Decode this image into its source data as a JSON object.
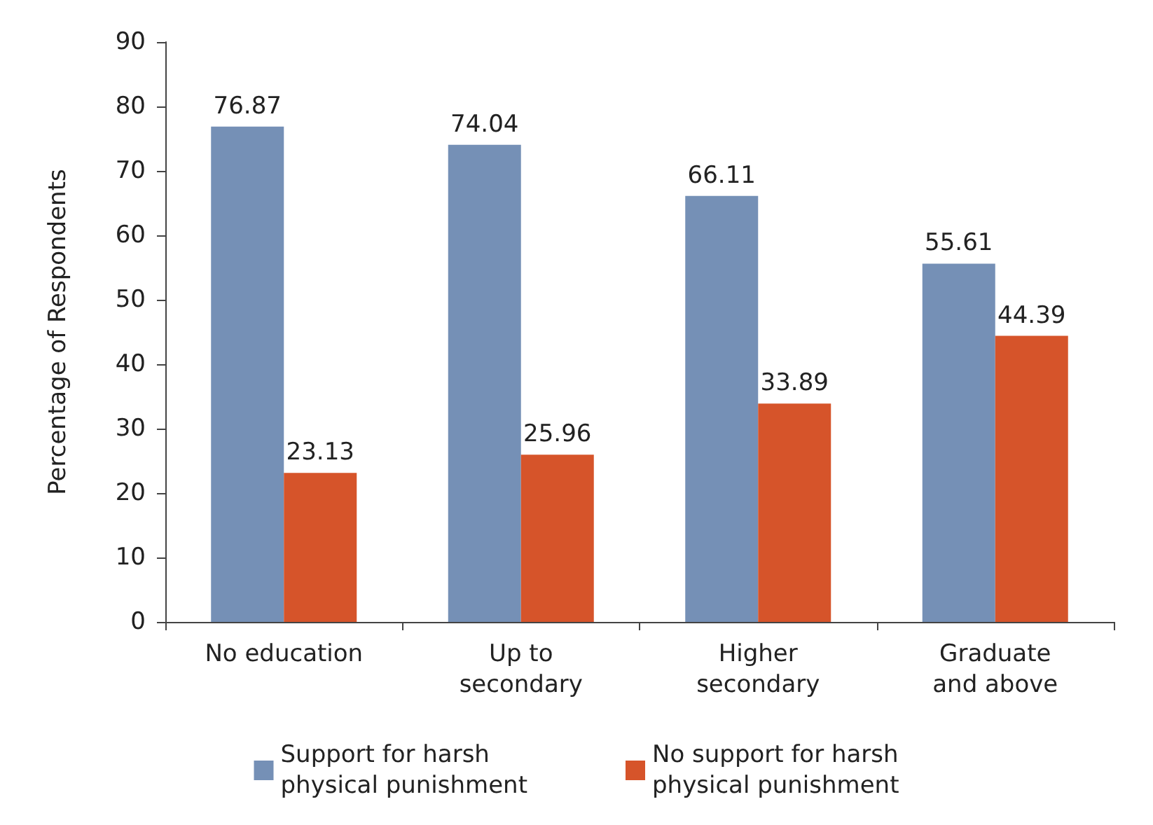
{
  "chart_data": {
    "type": "bar",
    "ylabel": "Percentage of Respondents",
    "categories": [
      "No education",
      "Up to\nsecondary",
      "Higher\nsecondary",
      "Graduate\nand above"
    ],
    "series": [
      {
        "name": "Support for harsh\nphysical punishment",
        "color": "#7590b6",
        "values": [
          76.87,
          74.04,
          66.11,
          55.61
        ]
      },
      {
        "name": "No support for harsh\nphysical punishment",
        "color": "#d6542a",
        "values": [
          23.13,
          25.96,
          33.89,
          44.39
        ]
      }
    ],
    "ylim": [
      0,
      90
    ],
    "yticks": [
      0,
      10,
      20,
      30,
      40,
      50,
      60,
      70,
      80,
      90
    ],
    "grid": false,
    "legend": "bottom",
    "data_labels": true
  }
}
